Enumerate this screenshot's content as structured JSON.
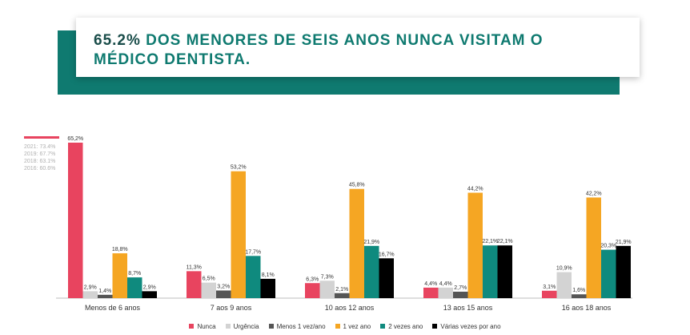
{
  "header": {
    "highlight": "65.2%",
    "title_rest": " DOS MENORES DE SEIS ANOS NUNCA VISITAM O MÉDICO DENTISTA."
  },
  "history": {
    "items": [
      "2021: 73.4%",
      "2019: 67.7%",
      "2018: 63.1%",
      "2016: 60.6%"
    ]
  },
  "chart_data": {
    "type": "bar",
    "categories": [
      "Menos de 6 anos",
      "7 aos 9 anos",
      "10 aos 12 anos",
      "13 aos 15 anos",
      "16 aos 18 anos"
    ],
    "series": [
      {
        "name": "Nunca",
        "color": "#e8445f",
        "values": [
          65.2,
          11.3,
          6.3,
          4.4,
          3.1
        ],
        "labels": [
          "65,2%",
          "11,3%",
          "6,3%",
          "4,4%",
          "3,1%"
        ]
      },
      {
        "name": "Urgência",
        "color": "#d3d3d3",
        "values": [
          2.9,
          6.5,
          7.3,
          4.4,
          10.9
        ],
        "labels": [
          "2,9%",
          "6,5%",
          "7,3%",
          "4,4%",
          "10,9%"
        ]
      },
      {
        "name": "Menos 1 vez/ano",
        "color": "#555555",
        "values": [
          1.4,
          3.2,
          2.1,
          2.7,
          1.6
        ],
        "labels": [
          "1,4%",
          "3,2%",
          "2,1%",
          "2,7%",
          "1,6%"
        ]
      },
      {
        "name": "1 vez ano",
        "color": "#f5a623",
        "values": [
          18.8,
          53.2,
          45.8,
          44.2,
          42.2
        ],
        "labels": [
          "18,8%",
          "53,2%",
          "45,8%",
          "44,2%",
          "42,2%"
        ]
      },
      {
        "name": "2 vezes ano",
        "color": "#0f8a7e",
        "values": [
          8.7,
          17.7,
          21.9,
          22.1,
          20.3
        ],
        "labels": [
          "8,7%",
          "17,7%",
          "21,9%",
          "22,1%",
          "20,3%"
        ]
      },
      {
        "name": "Várias vezes por ano",
        "color": "#000000",
        "values": [
          2.9,
          8.1,
          16.7,
          22.1,
          21.9
        ],
        "labels": [
          "2,9%",
          "8,1%",
          "16,7%",
          "22,1%",
          "21,9%"
        ]
      }
    ],
    "ylim": [
      0,
      70
    ],
    "grid": false,
    "legend_position": "bottom"
  }
}
